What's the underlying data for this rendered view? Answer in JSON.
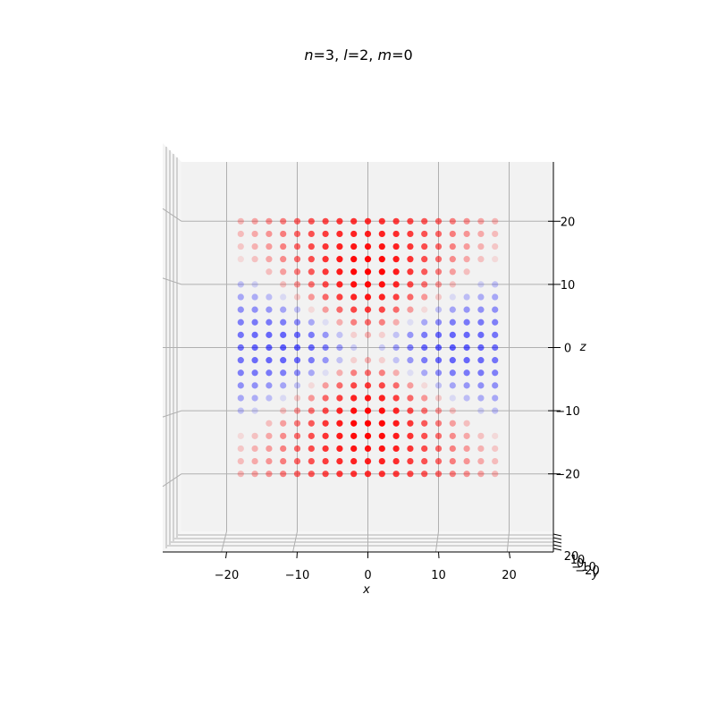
{
  "chart_data": {
    "type": "scatter",
    "projection": "3d",
    "view": "front view looking along y",
    "title_parts": {
      "n_symbol": "n",
      "n_value": "=3, ",
      "l_symbol": "l",
      "l_value": "=2, ",
      "m_symbol": "m",
      "m_value": "=0"
    },
    "xlabel": "x",
    "ylabel": "y",
    "zlabel": "z",
    "xlim": [
      -30,
      30
    ],
    "zlim": [
      -30,
      30
    ],
    "x_ticks": [
      {
        "value": -20,
        "label": "−20"
      },
      {
        "value": -10,
        "label": "−10"
      },
      {
        "value": 0,
        "label": "0"
      },
      {
        "value": 10,
        "label": "10"
      },
      {
        "value": 20,
        "label": "20"
      }
    ],
    "z_ticks": [
      {
        "value": -20,
        "label": "−20"
      },
      {
        "value": -10,
        "label": "−10"
      },
      {
        "value": 0,
        "label": "0"
      },
      {
        "value": 10,
        "label": "10"
      },
      {
        "value": 20,
        "label": "20"
      }
    ],
    "y_ticks_labels": [
      "20",
      "10",
      "0",
      "−10",
      "−20"
    ],
    "grid": true,
    "colors": {
      "positive": "#ff0000",
      "negative": "#0000ff",
      "pane": "#f2f2f2",
      "grid": "#b0b0b0"
    },
    "grid_spacing": 2,
    "point_rule": "psi ∝ r^2 exp(-r/6) (3cos^2θ - 1); color red where positive, blue where negative; opacity proportional to |psi| normalized, points below threshold omitted",
    "x_range": [
      -18,
      18
    ],
    "z_range": [
      -20,
      20
    ]
  }
}
